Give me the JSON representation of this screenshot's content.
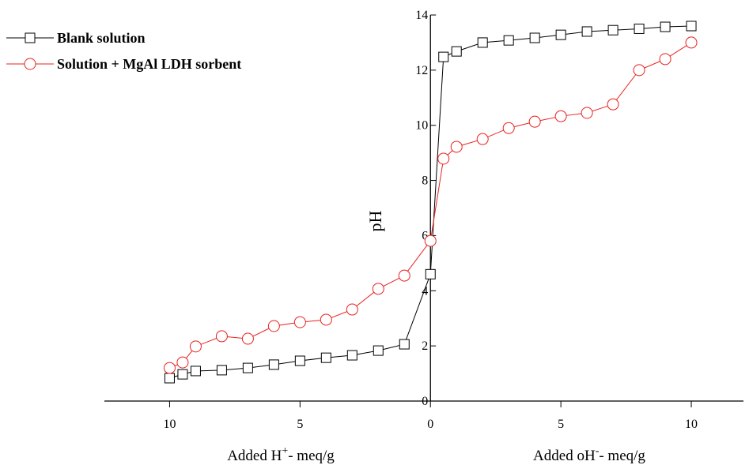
{
  "chart_data": {
    "type": "line",
    "ylabel": "pH",
    "xlabels": [
      [
        "Added H",
        "+",
        "- meq/g"
      ],
      [
        "Added oH",
        "-",
        "- meq/g"
      ]
    ],
    "x": [
      -10,
      -9.5,
      -9,
      -8,
      -7,
      -6,
      -5,
      -4,
      -3,
      -2,
      -1,
      0,
      0.5,
      1,
      2,
      3,
      4,
      5,
      6,
      7,
      8,
      9,
      10
    ],
    "series": [
      {
        "name": "Blank solution",
        "color": "#000000",
        "marker": "square",
        "values": [
          0.83,
          0.97,
          1.09,
          1.12,
          1.2,
          1.32,
          1.46,
          1.57,
          1.66,
          1.83,
          2.06,
          4.6,
          12.48,
          12.68,
          13.0,
          13.08,
          13.17,
          13.28,
          13.4,
          13.45,
          13.5,
          13.57,
          13.6
        ]
      },
      {
        "name": "Solution +  MgAl LDH sorbent",
        "color": "#e8231f",
        "marker": "circle",
        "values": [
          1.2,
          1.4,
          1.98,
          2.35,
          2.26,
          2.72,
          2.86,
          2.95,
          3.32,
          4.07,
          4.55,
          5.81,
          8.79,
          9.22,
          9.5,
          9.9,
          10.13,
          10.33,
          10.45,
          10.76,
          12.0,
          12.4,
          13.0
        ]
      }
    ],
    "xlim": [
      -12.5,
      12
    ],
    "xticks": [
      {
        "value": -10,
        "label": "10"
      },
      {
        "value": -5,
        "label": "5"
      },
      0,
      5,
      10
    ],
    "ylim": [
      0,
      14
    ],
    "yticks": [
      0,
      2,
      4,
      6,
      8,
      10,
      12,
      14
    ],
    "legend": "top-left"
  }
}
